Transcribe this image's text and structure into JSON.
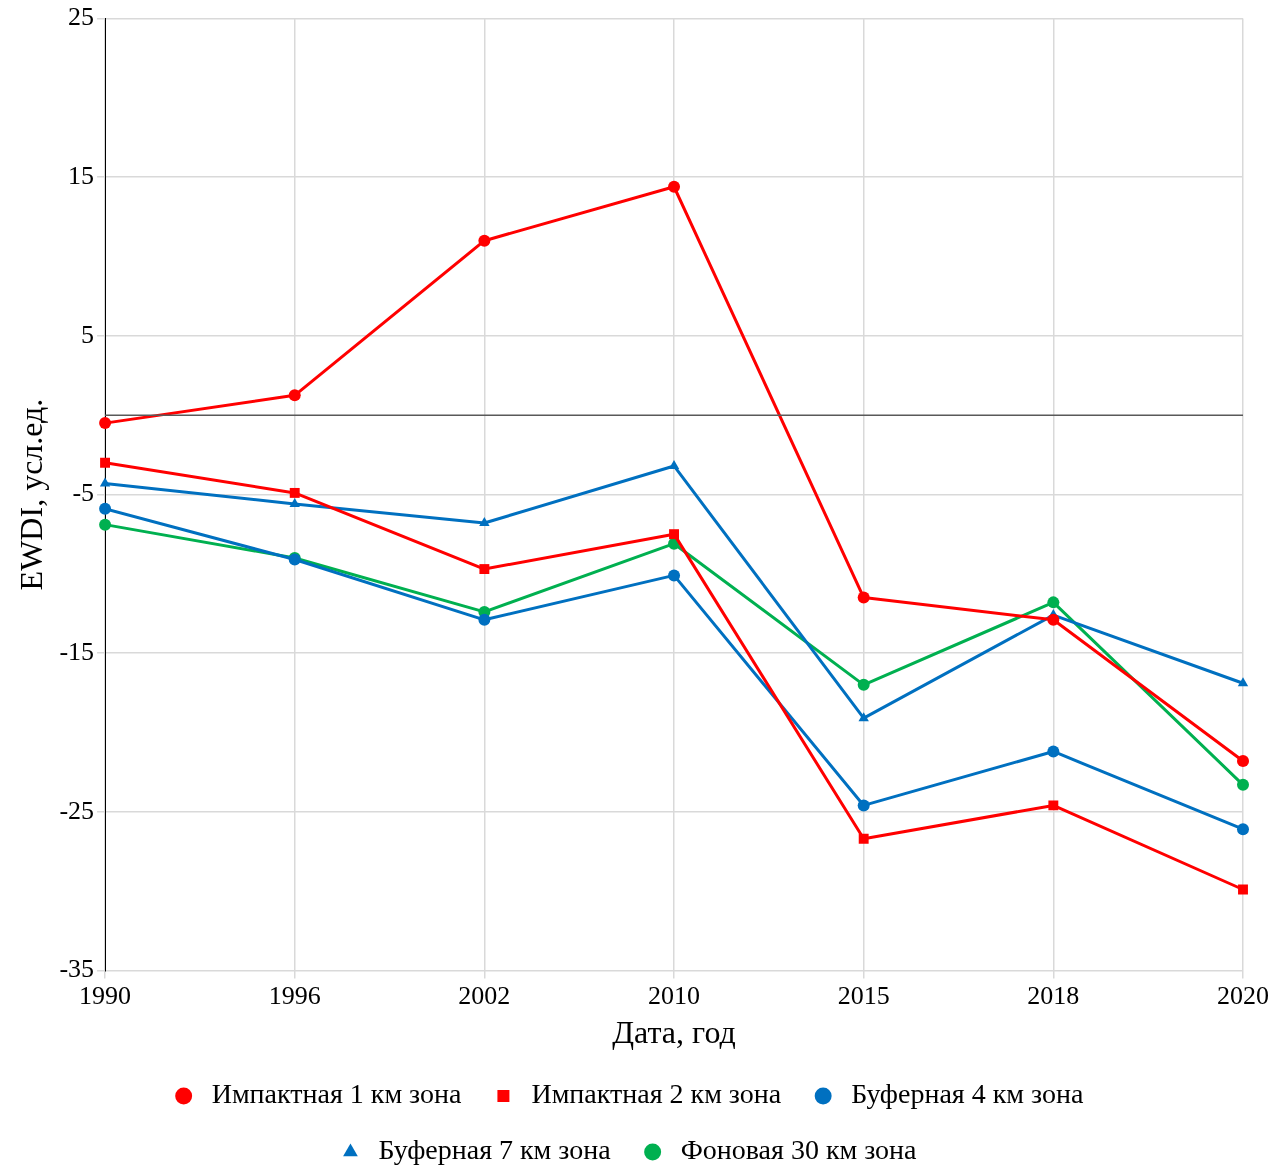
{
  "chart_data": {
    "type": "line",
    "xlabel": "Дата, год",
    "ylabel": "EWDI, усл.ед.",
    "categories": [
      "1990",
      "1996",
      "2002",
      "2010",
      "2015",
      "2018",
      "2020"
    ],
    "ylim": [
      -35,
      25
    ],
    "yticks": [
      -35,
      -25,
      -15,
      -5,
      5,
      15,
      25
    ],
    "grid": true,
    "legend": "bottom",
    "line_style": "solid",
    "ref_lines": [
      {
        "axis": "y",
        "value": 0,
        "color": "#595959"
      }
    ],
    "series": [
      {
        "name": "Импактная 1 км зона",
        "color": "#ff0000",
        "marker": "circle",
        "values": [
          -0.5,
          1.25,
          11,
          14.4,
          -11.5,
          -12.9,
          -21.8
        ]
      },
      {
        "name": "Импактная 2 км зона",
        "color": "#ff0000",
        "marker": "square",
        "values": [
          -3,
          -4.9,
          -9.7,
          -7.5,
          -26.7,
          -24.6,
          -29.9
        ]
      },
      {
        "name": "Буферная 4 км зона",
        "color": "#0070c0",
        "marker": "circle",
        "values": [
          -5.9,
          -9.1,
          -12.9,
          -10.1,
          -24.6,
          -21.2,
          -26.1
        ]
      },
      {
        "name": "Буферная 7 км зона",
        "color": "#0070c0",
        "marker": "triangle",
        "values": [
          -4.3,
          -5.6,
          -6.8,
          -3.2,
          -19.1,
          -12.6,
          -16.9
        ]
      },
      {
        "name": "Фоновая 30 км зона",
        "color": "#00b050",
        "marker": "circle",
        "values": [
          -6.9,
          -9,
          -12.4,
          -8.1,
          -17,
          -11.8,
          -23.3
        ]
      }
    ]
  }
}
